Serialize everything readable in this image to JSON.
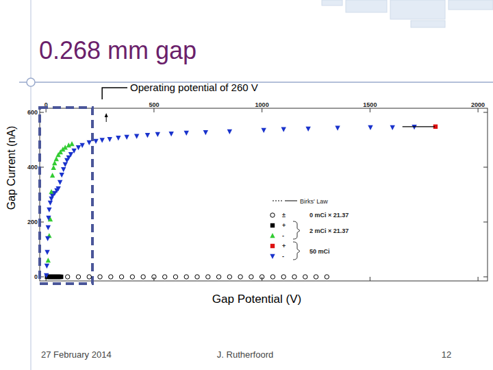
{
  "slide": {
    "title": "0.268 mm gap",
    "date": "27 February 2014",
    "author": "J. Rutherfoord",
    "page": "12"
  },
  "chart_data": {
    "type": "scatter",
    "x_label": "Gap Potential (V)",
    "y_label": "Gap Current (nA)",
    "xlim": [
      -29,
      2044
    ],
    "ylim": [
      -15,
      615
    ],
    "xticks": [
      0,
      500,
      1000,
      1500,
      2000
    ],
    "yticks": [
      0,
      200,
      400,
      600
    ],
    "grid": false,
    "legend": "right",
    "annotations": [
      {
        "text": "Operating potential of 260 V",
        "x": 260
      }
    ],
    "series": [
      {
        "name": "±",
        "group": "0 mCi × 21.37",
        "color": "#000000",
        "marker": "circle_open",
        "x": [
          100,
          150,
          200,
          250,
          300,
          350,
          400,
          450,
          500,
          550,
          600,
          650,
          700,
          750,
          800,
          850,
          900,
          950,
          1000,
          1050,
          1100,
          1150,
          1200,
          1250,
          1300
        ],
        "values": [
          0,
          0,
          0,
          0,
          0,
          0,
          0,
          0,
          0,
          0,
          0,
          0,
          0,
          0,
          0,
          0,
          0,
          0,
          0,
          0,
          0,
          0,
          0,
          0,
          0
        ]
      },
      {
        "name": "+",
        "group": "2 mCi × 21.37",
        "color": "#000000",
        "marker": "square",
        "x": [
          5,
          10,
          15,
          20,
          25,
          30,
          35,
          40,
          45,
          50,
          55,
          60,
          65,
          70
        ],
        "values": [
          0,
          0,
          0,
          0,
          0,
          0,
          0,
          0,
          0,
          0,
          0,
          0,
          0,
          0
        ]
      },
      {
        "name": "-",
        "group": "2 mCi × 21.37",
        "color": "#33cc33",
        "marker": "triangle_up",
        "x": [
          10,
          15,
          20,
          25,
          30,
          35,
          40,
          48,
          57,
          67,
          78,
          89,
          105,
          120
        ],
        "values": [
          60,
          150,
          210,
          310,
          370,
          398,
          415,
          430,
          445,
          455,
          465,
          472,
          480,
          485
        ]
      },
      {
        "name": "+",
        "group": "50 mCi",
        "color": "#dd1111",
        "marker": "square",
        "x": [
          1803
        ],
        "values": [
          548
        ]
      },
      {
        "name": "-",
        "group": "50 mCi",
        "color": "#1a33cc",
        "marker": "triangle_down",
        "x": [
          2,
          4,
          6,
          8,
          10,
          12,
          15,
          20,
          25,
          30,
          40,
          50,
          57,
          65,
          73,
          81,
          89,
          97,
          105,
          115,
          130,
          150,
          168,
          200,
          231,
          260,
          295,
          335,
          374,
          420,
          470,
          517,
          580,
          650,
          739,
          850,
          1008,
          1100,
          1214,
          1350,
          1502,
          1604,
          1705
        ],
        "values": [
          5,
          40,
          90,
          140,
          180,
          215,
          245,
          270,
          285,
          295,
          305,
          315,
          322,
          345,
          372,
          392,
          410,
          425,
          435,
          447,
          460,
          472,
          480,
          490,
          495,
          499,
          502,
          507,
          510,
          513,
          517,
          520,
          522,
          525,
          527,
          530,
          535,
          538,
          540,
          543,
          545,
          545,
          547
        ]
      },
      {
        "name": "Birks' Law",
        "type": "line",
        "color": "#000000",
        "line_style": "solid",
        "x": [
          1650,
          1800
        ],
        "values": [
          548,
          548
        ]
      }
    ]
  }
}
